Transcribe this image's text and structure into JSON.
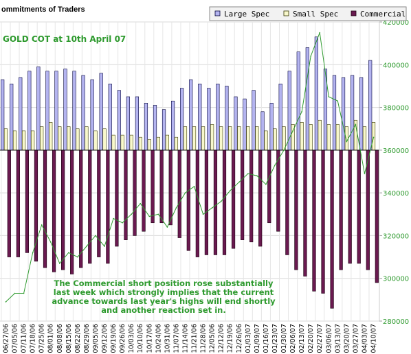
{
  "chart_data": {
    "type": "bar",
    "title": "ommitments of Traders",
    "subtitle": "GOLD COT at 10th April 07",
    "annotation": [
      "The Commercial short position rose substantially",
      "last week which strongly implies that the current",
      "advance towards last year's highs will end shortly",
      "and another reaction set in."
    ],
    "legend": {
      "placement": "top-right",
      "items": [
        {
          "label": "Large Spec",
          "color": "#b4b4f0"
        },
        {
          "label": "Small Spec",
          "color": "#f8f8cc"
        },
        {
          "label": "Commercial",
          "color": "#6a1a50"
        }
      ]
    },
    "y_axis": {
      "side": "right",
      "min": 280000,
      "max": 420000,
      "baseline": 360000,
      "ticks": [
        "280000",
        "300000",
        "320000",
        "340000",
        "360000",
        "380000",
        "400000",
        "420000"
      ]
    },
    "categories": [
      "06/27/06",
      "07/05/06",
      "07/11/06",
      "07/18/06",
      "07/25/06",
      "08/01/06",
      "08/08/06",
      "08/15/06",
      "08/22/06",
      "08/29/06",
      "09/05/06",
      "09/12/06",
      "09/19/06",
      "09/26/06",
      "10/03/06",
      "10/10/06",
      "10/17/06",
      "10/24/06",
      "10/31/06",
      "11/07/06",
      "11/14/06",
      "11/21/06",
      "11/28/06",
      "12/05/06",
      "12/12/06",
      "12/19/06",
      "12/26/06",
      "01/03/07",
      "01/09/07",
      "01/16/07",
      "01/23/07",
      "01/30/07",
      "02/06/07",
      "02/13/07",
      "02/20/07",
      "02/27/07",
      "03/06/07",
      "03/13/07",
      "03/20/07",
      "03/27/07",
      "04/03/07",
      "04/10/07"
    ],
    "x_tick_labels": [
      "06/27/06",
      "07/05/06",
      "07/11/06",
      "07/18/06",
      "07/25/06",
      "08/01/06",
      "08/08/06",
      "08/15/06",
      "08/22/06",
      "08/29/06",
      "09/05/06",
      "09/12/06",
      "09/19/06",
      "09/26/06",
      "10/03/06",
      "10/10/06",
      "10/17/06",
      "10/24/06",
      "10/31/06",
      "11/07/06",
      "11/14/06",
      "11/21/06",
      "11/28/06",
      "12/05/06",
      "12/12/06",
      "12/19/06",
      "12/26/06",
      "01/03/07",
      "01/09/07",
      "01/16/07",
      "01/23/07",
      "01/30/07",
      "02/06/07",
      "02/13/07",
      "02/20/07",
      "02/27/07",
      "03/06/07",
      "03/13/07",
      "03/20/07",
      "03/27/07",
      "04/03/07",
      "04/10/07"
    ],
    "series": [
      {
        "name": "Large Spec",
        "values": [
          393000,
          391000,
          394000,
          397000,
          399000,
          397000,
          397000,
          398000,
          397000,
          395000,
          393000,
          396000,
          391000,
          388000,
          385000,
          385000,
          382000,
          381000,
          379000,
          383000,
          389000,
          393000,
          391000,
          389000,
          391000,
          390000,
          385000,
          384000,
          388000,
          378000,
          382000,
          391000,
          397000,
          406000,
          408000,
          413000,
          398000,
          395000,
          394000,
          395000,
          394000,
          402000
        ]
      },
      {
        "name": "Small Spec",
        "values": [
          370000,
          369000,
          369000,
          369000,
          371000,
          373000,
          371000,
          371000,
          370000,
          371000,
          369000,
          370000,
          367000,
          367000,
          367000,
          366000,
          365000,
          366000,
          367000,
          366000,
          371000,
          371000,
          371000,
          372000,
          371000,
          371000,
          371000,
          371000,
          371000,
          369000,
          370000,
          371000,
          372000,
          373000,
          372000,
          374000,
          372000,
          372000,
          371000,
          374000,
          371000,
          373000
        ]
      },
      {
        "name": "Commercial",
        "values": [
          310000,
          310000,
          312000,
          308000,
          305000,
          303000,
          304000,
          302000,
          305000,
          307000,
          310000,
          307000,
          315000,
          318000,
          320000,
          322000,
          326000,
          326000,
          325000,
          319000,
          313000,
          310000,
          311000,
          311000,
          311000,
          314000,
          318000,
          317000,
          315000,
          326000,
          322000,
          311000,
          304000,
          301000,
          294000,
          293000,
          286000,
          304000,
          307000,
          307000,
          304000,
          298000
        ]
      },
      {
        "name": "",
        "values": [
          289000,
          293000,
          293000,
          312000,
          325000,
          317000,
          307000,
          312000,
          310000,
          315000,
          320000,
          315000,
          328000,
          326000,
          330000,
          335000,
          329000,
          330000,
          324000,
          333000,
          340000,
          343000,
          330000,
          333000,
          336000,
          341000,
          345000,
          349000,
          348000,
          344000,
          353000,
          360000,
          369000,
          378000,
          404000,
          415000,
          385000,
          383000,
          364000,
          372000,
          349000,
          366000
        ]
      }
    ],
    "line_color": "#2e9a2e",
    "grid": true
  }
}
